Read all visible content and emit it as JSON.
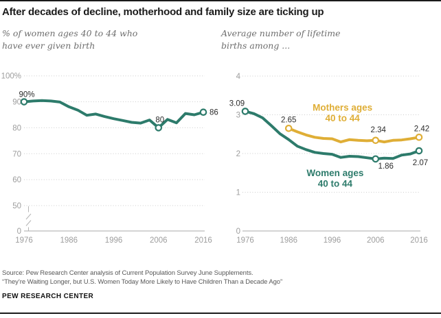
{
  "header": {
    "title": "After decades of decline, motherhood and family size are ticking up"
  },
  "subtitles": {
    "left": {
      "line1": "% of women ages 40 to 44 who",
      "line2": "have ever given birth"
    },
    "right": {
      "line1": "Average number of lifetime",
      "line2": "births among ..."
    }
  },
  "colors": {
    "green": "#2D7B6B",
    "gold": "#DFAE36",
    "axis_text": "#9d9d9d",
    "data_label": "#2b2b2b",
    "grid": "#cbcbcb",
    "baseline": "#bbbbbb",
    "rule": "#1a1a1a"
  },
  "chart_data": [
    {
      "type": "line",
      "title": "% of women ages 40 to 44 who have ever given birth",
      "x_range": [
        1976,
        2016
      ],
      "xticks": [
        1976,
        1986,
        1996,
        2006,
        2016
      ],
      "yticks": [
        {
          "value": 100,
          "label": "100%"
        },
        {
          "value": 90,
          "label": "90"
        },
        {
          "value": 80,
          "label": "80"
        },
        {
          "value": 70,
          "label": "70"
        },
        {
          "value": 60,
          "label": "60"
        },
        {
          "value": 50,
          "label": "50"
        },
        {
          "value": 0,
          "label": "0"
        }
      ],
      "axis_break": true,
      "series": [
        {
          "name": "Women ages 40 to 44 who have ever given birth (%)",
          "color": "green",
          "x": [
            1976,
            1978,
            1980,
            1982,
            1984,
            1986,
            1988,
            1990,
            1992,
            1994,
            1996,
            1998,
            2000,
            2002,
            2004,
            2006,
            2008,
            2010,
            2012,
            2014,
            2016
          ],
          "values": [
            90,
            90.3,
            90.5,
            90.3,
            89.9,
            88.1,
            86.8,
            84.8,
            85.3,
            84.3,
            83.5,
            82.8,
            82.1,
            81.8,
            83.0,
            80,
            83.2,
            81.9,
            85.5,
            85.0,
            86
          ],
          "markers": [
            {
              "year": 1976,
              "label": "90%",
              "dx": 4,
              "dy": -7,
              "anchor": "middle"
            },
            {
              "year": 2006,
              "label": "80",
              "dx": 2,
              "dy": -8,
              "anchor": "middle"
            },
            {
              "year": 2016,
              "label": "86",
              "dx": 9,
              "dy": 4,
              "anchor": "start"
            }
          ]
        }
      ],
      "annotations": []
    },
    {
      "type": "line",
      "title": "Average number of lifetime births among ...",
      "x_range": [
        1976,
        2016
      ],
      "xticks": [
        1976,
        1986,
        1996,
        2006,
        2016
      ],
      "yticks": [
        {
          "value": 4,
          "label": "4"
        },
        {
          "value": 3,
          "label": "3"
        },
        {
          "value": 2,
          "label": "2"
        },
        {
          "value": 1,
          "label": "1"
        },
        {
          "value": 0,
          "label": "0"
        }
      ],
      "axis_break": false,
      "series": [
        {
          "name": "Mothers ages 40 to 44",
          "color": "gold",
          "x": [
            1986,
            1988,
            1990,
            1992,
            1994,
            1996,
            1998,
            2000,
            2002,
            2004,
            2006,
            2008,
            2010,
            2012,
            2014,
            2016
          ],
          "values": [
            2.65,
            2.56,
            2.48,
            2.42,
            2.39,
            2.38,
            2.3,
            2.36,
            2.34,
            2.33,
            2.34,
            2.3,
            2.34,
            2.35,
            2.38,
            2.42
          ],
          "markers": [
            {
              "year": 1986,
              "label": "2.65",
              "dx": 0,
              "dy": -9,
              "anchor": "middle"
            },
            {
              "year": 2006,
              "label": "2.34",
              "dx": 4,
              "dy": -12,
              "anchor": "middle"
            },
            {
              "year": 2016,
              "label": "2.42",
              "dx": 4,
              "dy": -9,
              "anchor": "middle"
            }
          ]
        },
        {
          "name": "Women ages 40 to 44",
          "color": "green",
          "x": [
            1976,
            1978,
            1980,
            1982,
            1984,
            1986,
            1988,
            1990,
            1992,
            1994,
            1996,
            1998,
            2000,
            2002,
            2004,
            2006,
            2008,
            2010,
            2012,
            2014,
            2016
          ],
          "values": [
            3.09,
            3.03,
            2.92,
            2.72,
            2.51,
            2.36,
            2.19,
            2.1,
            2.03,
            2.0,
            1.98,
            1.9,
            1.93,
            1.92,
            1.89,
            1.86,
            1.88,
            1.87,
            1.96,
            1.99,
            2.07
          ],
          "markers": [
            {
              "year": 1976,
              "label": "3.09",
              "dx": -12,
              "dy": -8,
              "anchor": "middle"
            },
            {
              "year": 2006,
              "label": "1.86",
              "dx": 15,
              "dy": 14,
              "anchor": "middle"
            },
            {
              "year": 2016,
              "label": "2.07",
              "dx": 2,
              "dy": 21,
              "anchor": "middle"
            }
          ]
        }
      ],
      "annotations": [
        {
          "lines": [
            "Mothers ages",
            "40 to 44"
          ],
          "color": "gold",
          "year": 1998.4,
          "value": 3.11
        },
        {
          "lines": [
            "Women ages",
            "40 to 44"
          ],
          "color": "green",
          "year": 1996.7,
          "value": 1.42
        }
      ]
    }
  ],
  "source": {
    "line1": "Source: Pew Research Center analysis of Current Population Survey June Supplements.",
    "line2": "“They’re Waiting Longer, but U.S. Women Today More Likely to Have Children Than a Decade Ago”"
  },
  "footer": {
    "brand": "PEW RESEARCH CENTER"
  }
}
